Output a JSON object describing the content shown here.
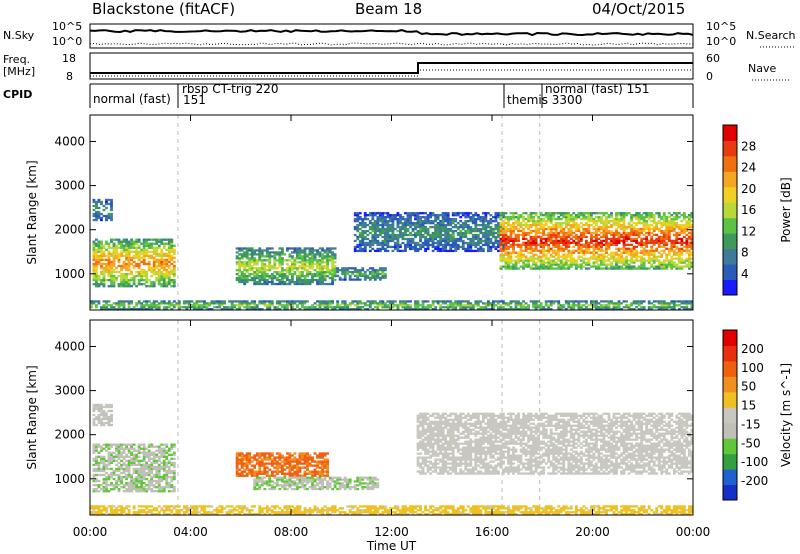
{
  "header": {
    "station": "Blackstone (fitACF)",
    "beam": "Beam 18",
    "date": "04/Oct/2015"
  },
  "noise_panel": {
    "left_label": "N.Sky",
    "left_ticks": [
      "10^5",
      "10^0"
    ],
    "right_ticks": [
      "10^5",
      "10^0"
    ],
    "right_label": "N.Search"
  },
  "freq_panel": {
    "left_label_1": "Freq.",
    "left_label_2": "[MHz]",
    "left_ticks": [
      "18",
      "8"
    ],
    "right_ticks": [
      "60",
      "0"
    ],
    "right_label": "Nave"
  },
  "cpid_panel": {
    "label": "CPID",
    "modes": [
      {
        "name": "normal (fast)",
        "id": ""
      },
      {
        "name": "rbsp CT-trig 220",
        "id": "151"
      },
      {
        "name": "themis 3300",
        "id": ""
      },
      {
        "name": "normal (fast) 151",
        "id": ""
      }
    ]
  },
  "colors": {
    "background_gate": "#808080",
    "power_scale": [
      "#1a1aff",
      "#2a5bb8",
      "#3f7a9a",
      "#3e9a5a",
      "#5cc246",
      "#b8d838",
      "#f0d020",
      "#f5a623",
      "#f07010",
      "#e83a10",
      "#e00000"
    ],
    "velocity_scale": [
      "#1530c8",
      "#2060d0",
      "#30a040",
      "#60c838",
      "#c0c0b8",
      "#c8c8c0",
      "#f0c020",
      "#f09020",
      "#f06010",
      "#e83010",
      "#e00000"
    ]
  },
  "chart_data": [
    {
      "type": "heatmap",
      "title": "",
      "xlabel": "",
      "ylabel": "Slant Range [km]",
      "xlim": [
        0,
        24
      ],
      "ylim": [
        180,
        4600
      ],
      "xticks": [
        "00:00",
        "04:00",
        "08:00",
        "12:00",
        "16:00",
        "20:00",
        "00:00"
      ],
      "yticks": [
        1000,
        2000,
        3000,
        4000
      ],
      "colorbar": {
        "label": "Power [dB]",
        "ticks": [
          4,
          8,
          12,
          16,
          20,
          24,
          28
        ],
        "range": [
          0,
          32
        ]
      },
      "regions": [
        {
          "t0": 0.1,
          "t1": 3.4,
          "r0": 700,
          "r1": 1800,
          "level": 20
        },
        {
          "t0": 0.1,
          "t1": 0.9,
          "r0": 2200,
          "r1": 2700,
          "level": 8
        },
        {
          "t0": 5.8,
          "t1": 9.8,
          "r0": 750,
          "r1": 1600,
          "level": 14
        },
        {
          "t0": 9.8,
          "t1": 11.8,
          "r0": 850,
          "r1": 1150,
          "level": 10
        },
        {
          "t0": 10.5,
          "t1": 16.5,
          "r0": 1500,
          "r1": 2400,
          "level": 8
        },
        {
          "t0": 16.3,
          "t1": 24.0,
          "r0": 1100,
          "r1": 2400,
          "level": 24
        },
        {
          "t0": 0.0,
          "t1": 24.0,
          "r0": 180,
          "r1": 400,
          "level": 12
        }
      ]
    },
    {
      "type": "heatmap",
      "title": "",
      "xlabel": "Time UT",
      "ylabel": "Slant Range [km]",
      "xlim": [
        0,
        24
      ],
      "ylim": [
        180,
        4600
      ],
      "xticks": [
        "00:00",
        "04:00",
        "08:00",
        "12:00",
        "16:00",
        "20:00",
        "00:00"
      ],
      "yticks": [
        1000,
        2000,
        3000,
        4000
      ],
      "colorbar": {
        "label": "Velocity [m s^-1]",
        "ticks": [
          200,
          100,
          50,
          15,
          -15,
          -50,
          -100,
          -200
        ],
        "range": [
          -250,
          250
        ]
      },
      "regions": [
        {
          "t0": 0.1,
          "t1": 3.4,
          "r0": 700,
          "r1": 1800,
          "level": -60
        },
        {
          "t0": 0.1,
          "t1": 0.9,
          "r0": 2200,
          "r1": 2700,
          "level": -20
        },
        {
          "t0": 5.8,
          "t1": 9.5,
          "r0": 1050,
          "r1": 1600,
          "level": 120
        },
        {
          "t0": 6.5,
          "t1": 11.5,
          "r0": 750,
          "r1": 1050,
          "level": -60
        },
        {
          "t0": 13.0,
          "t1": 24.0,
          "r0": 1100,
          "r1": 2500,
          "level": 0
        },
        {
          "t0": 0.0,
          "t1": 24.0,
          "r0": 180,
          "r1": 400,
          "level": 40
        }
      ]
    }
  ]
}
